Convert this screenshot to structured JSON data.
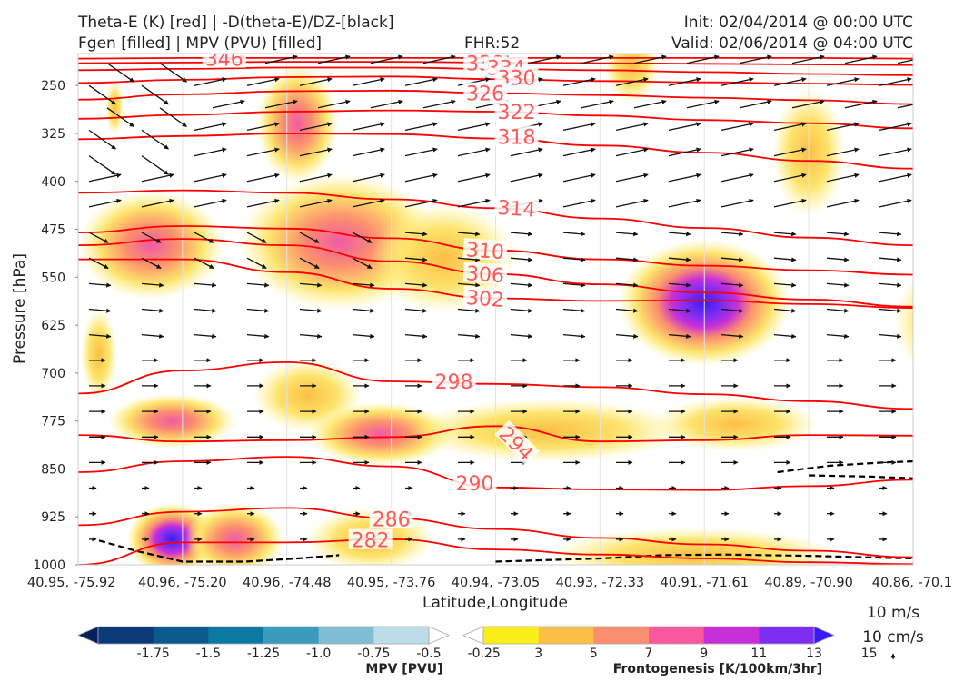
{
  "header": {
    "line1_left": "Theta-E (K) [red] | -D(theta-E)/DZ-[black]",
    "line2_left": "Fgen [filled] | MPV (PVU) [filled]",
    "fhr": "FHR:52",
    "init": "Init: 02/04/2014 @ 00:00 UTC",
    "valid": "Valid: 02/06/2014 @ 04:00 UTC"
  },
  "chart_data": {
    "type": "cross-section",
    "xlabel": "Latitude,Longitude",
    "ylabel": "Pressure [hPa]",
    "y_ticks": [
      250,
      325,
      400,
      475,
      550,
      625,
      700,
      775,
      850,
      925,
      1000
    ],
    "ylim": [
      200,
      1000
    ],
    "x_ticks": [
      "40.95, -75.92",
      "40.96, -75.20",
      "40.96, -74.48",
      "40.95, -73.76",
      "40.94, -73.05",
      "40.93, -72.33",
      "40.91, -71.61",
      "40.89, -70.90",
      "40.86, -70.1"
    ],
    "theta_e_labels": [
      "346",
      "338",
      "334",
      "330",
      "326",
      "322",
      "318",
      "314",
      "310",
      "306",
      "302",
      "298",
      "294",
      "290",
      "286",
      "282"
    ],
    "theta_e_contours": [
      {
        "label": "346",
        "points": [
          [
            0,
            208
          ],
          [
            1,
            207
          ],
          [
            2,
            207
          ],
          [
            3,
            207
          ],
          [
            4,
            207
          ],
          [
            5,
            207
          ],
          [
            6,
            207
          ],
          [
            7,
            207
          ],
          [
            8,
            208
          ]
        ]
      },
      {
        "label": "338",
        "points": [
          [
            0,
            215
          ],
          [
            1,
            214
          ],
          [
            2,
            213
          ],
          [
            3,
            213
          ],
          [
            4,
            214
          ],
          [
            5,
            215
          ],
          [
            6,
            216
          ],
          [
            7,
            217
          ],
          [
            8,
            218
          ]
        ]
      },
      {
        "label": "334",
        "points": [
          [
            0,
            226
          ],
          [
            1,
            224
          ],
          [
            2,
            222
          ],
          [
            3,
            222
          ],
          [
            4,
            224
          ],
          [
            5,
            226
          ],
          [
            6,
            229
          ],
          [
            7,
            232
          ],
          [
            8,
            234
          ]
        ]
      },
      {
        "label": "330",
        "points": [
          [
            0,
            246
          ],
          [
            1,
            241
          ],
          [
            2,
            237
          ],
          [
            3,
            236
          ],
          [
            4,
            240
          ],
          [
            5,
            243
          ],
          [
            6,
            245
          ],
          [
            7,
            247
          ],
          [
            8,
            249
          ]
        ]
      },
      {
        "label": "326",
        "points": [
          [
            0,
            272
          ],
          [
            1,
            264
          ],
          [
            2,
            259
          ],
          [
            3,
            258
          ],
          [
            4,
            262
          ],
          [
            5,
            265
          ],
          [
            6,
            269
          ],
          [
            7,
            273
          ],
          [
            8,
            279
          ]
        ]
      },
      {
        "label": "322",
        "points": [
          [
            0,
            302
          ],
          [
            1,
            296
          ],
          [
            2,
            291
          ],
          [
            3,
            289
          ],
          [
            4,
            291
          ],
          [
            5,
            297
          ],
          [
            6,
            304
          ],
          [
            7,
            309
          ],
          [
            8,
            317
          ]
        ]
      },
      {
        "label": "318",
        "points": [
          [
            0,
            334
          ],
          [
            1,
            329
          ],
          [
            2,
            325
          ],
          [
            3,
            326
          ],
          [
            4,
            333
          ],
          [
            5,
            344
          ],
          [
            6,
            355
          ],
          [
            7,
            368
          ],
          [
            8,
            380
          ]
        ]
      },
      {
        "label": "314",
        "points": [
          [
            0,
            418
          ],
          [
            1,
            414
          ],
          [
            2,
            418
          ],
          [
            3,
            428
          ],
          [
            4,
            442
          ],
          [
            5,
            458
          ],
          [
            6,
            473
          ],
          [
            7,
            488
          ],
          [
            8,
            500
          ]
        ]
      },
      {
        "label": "310",
        "points": [
          [
            0,
            480
          ],
          [
            1,
            470
          ],
          [
            2,
            474
          ],
          [
            3,
            489
          ],
          [
            4,
            508
          ],
          [
            5,
            522
          ],
          [
            6,
            532
          ],
          [
            7,
            539
          ],
          [
            8,
            546
          ]
        ]
      },
      {
        "label": "306",
        "points": [
          [
            0,
            500
          ],
          [
            1,
            490
          ],
          [
            2,
            500
          ],
          [
            3,
            525
          ],
          [
            4,
            545
          ],
          [
            5,
            561
          ],
          [
            6,
            574
          ],
          [
            7,
            585
          ],
          [
            8,
            596
          ]
        ]
      },
      {
        "label": "302",
        "points": [
          [
            0,
            522
          ],
          [
            1,
            522
          ],
          [
            2,
            542
          ],
          [
            3,
            568
          ],
          [
            4,
            583
          ],
          [
            5,
            587
          ],
          [
            6,
            586
          ],
          [
            7,
            592
          ],
          [
            8,
            598
          ]
        ]
      },
      {
        "label": "298",
        "points": [
          [
            0,
            732
          ],
          [
            1,
            696
          ],
          [
            2,
            683
          ],
          [
            3,
            713
          ],
          [
            4,
            717
          ],
          [
            5,
            722
          ],
          [
            6,
            733
          ],
          [
            7,
            744
          ],
          [
            8,
            756
          ]
        ]
      },
      {
        "label": "294",
        "points": [
          [
            0,
            797
          ],
          [
            1,
            807
          ],
          [
            2,
            805
          ],
          [
            3,
            800
          ],
          [
            4,
            783
          ],
          [
            5,
            807
          ],
          [
            6,
            805
          ],
          [
            7,
            797
          ],
          [
            8,
            798
          ]
        ]
      },
      {
        "label": "290",
        "points": [
          [
            0,
            855
          ],
          [
            1,
            838
          ],
          [
            2,
            831
          ],
          [
            3,
            846
          ],
          [
            4,
            879
          ],
          [
            5,
            882
          ],
          [
            6,
            883
          ],
          [
            7,
            877
          ],
          [
            8,
            867
          ]
        ]
      },
      {
        "label": "286",
        "points": [
          [
            0,
            938
          ],
          [
            1,
            917
          ],
          [
            2,
            911
          ],
          [
            3,
            927
          ],
          [
            4,
            944
          ],
          [
            5,
            958
          ],
          [
            6,
            968
          ],
          [
            7,
            978
          ],
          [
            8,
            988
          ]
        ]
      },
      {
        "label": "282",
        "points": [
          [
            0,
            1000
          ],
          [
            1,
            965
          ],
          [
            2,
            965
          ],
          [
            3,
            960
          ],
          [
            4,
            976
          ],
          [
            5,
            984
          ],
          [
            6,
            990
          ],
          [
            7,
            996
          ],
          [
            8,
            999
          ]
        ]
      }
    ],
    "colorbar_mpv": {
      "label": "MPV [PVU]",
      "ticks": [
        "-1.75",
        "-1.5",
        "-1.25",
        "-1.0",
        "-0.75",
        "-0.5",
        "-0.25"
      ],
      "colors": [
        "#08205e",
        "#0c3a78",
        "#0a5a8e",
        "#0b7aa3",
        "#3a9bbd",
        "#7ebdd3",
        "#bcdde8",
        "#ffffff"
      ]
    },
    "colorbar_fgen": {
      "label": "Frontogenesis [K/100km/3hr]",
      "ticks": [
        "3",
        "5",
        "7",
        "9",
        "11",
        "13",
        "15"
      ],
      "colors": [
        "#ffffff",
        "#faef1b",
        "#fbbf45",
        "#fb8e6e",
        "#f9589e",
        "#c72fd8",
        "#7e2ef2",
        "#3a19f5"
      ]
    },
    "vector_key": {
      "label1": "10 m/s",
      "label2": "10 cm/s"
    }
  },
  "colors": {
    "theta_e": "#ff0000",
    "theta_e_label": "#ff5a5a",
    "frame": "#cccccc",
    "arrow": "#111111"
  }
}
